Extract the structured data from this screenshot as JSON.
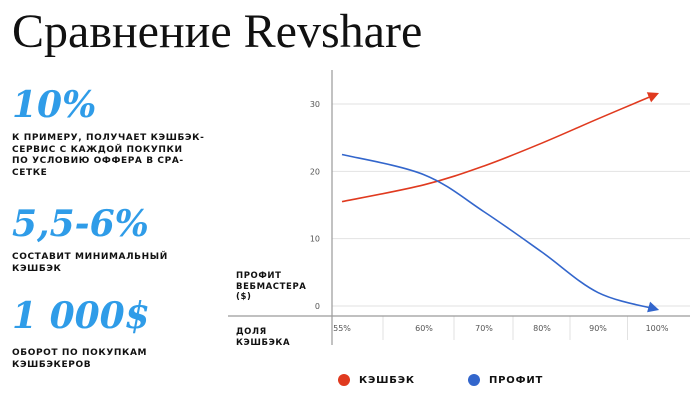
{
  "title": "Сравнение Revshare",
  "stats": [
    {
      "value": "10%",
      "description": "К ПРИМЕРУ, ПОЛУЧАЕТ КЭШБЭК-\nСЕРВИС С КАЖДОЙ ПОКУПКИ\n ПО УСЛОВИЮ ОФФЕРА В СРА-\nСЕТКЕ"
    },
    {
      "value": "5,5-6%",
      "description": "СОСТАВИТ МИНИМАЛЬНЫЙ\nКЭШБЭК"
    },
    {
      "value": "1 000$",
      "description": "ОБОРОТ ПО ПОКУПКАМ\nКЭШБЭКЕРОВ"
    }
  ],
  "colors": {
    "accent": "#2f9ce8",
    "cashback": "#e03a1f",
    "profit": "#3366cc",
    "grid": "#e2e2e2",
    "axis": "#9a9a9a"
  },
  "chart_data": {
    "type": "line",
    "ylabel": "ПРОФИТ\nВЕБМАСТЕРА\n($)",
    "xlabel": "ДОЛЯ\nКЭШБЭКА",
    "categories": [
      "55%",
      "60%",
      "70%",
      "80%",
      "90%",
      "100%"
    ],
    "y_ticks": [
      0,
      10,
      20,
      30
    ],
    "ylim": [
      0,
      30
    ],
    "grid": true,
    "legend_position": "bottom",
    "series": [
      {
        "name": "КЭШБЭК",
        "color": "#e03a1f",
        "values": [
          15.5,
          18.0,
          20.8,
          24.2,
          27.8,
          31.5
        ],
        "end_arrow": true
      },
      {
        "name": "ПРОФИТ",
        "color": "#3366cc",
        "values": [
          22.5,
          19.5,
          14.0,
          8.0,
          2.0,
          -0.5
        ],
        "end_arrow": true
      }
    ]
  }
}
